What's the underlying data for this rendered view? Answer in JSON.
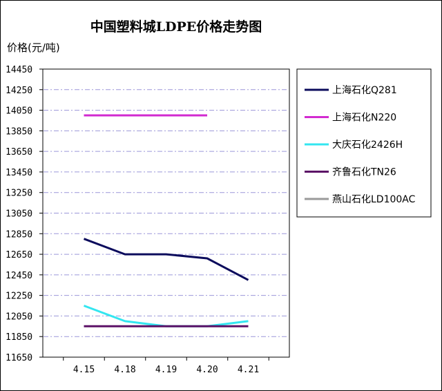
{
  "chart_data": {
    "type": "line",
    "title": "中国塑料城LDPE价格走势图",
    "ylabel": "价格(元/吨)",
    "xlabel": "",
    "categories": [
      "4.15",
      "4.18",
      "4.19",
      "4.20",
      "4.21"
    ],
    "y_ticks": [
      "14450",
      "14250",
      "14050",
      "13850",
      "13650",
      "13450",
      "13250",
      "13050",
      "12850",
      "12650",
      "12450",
      "12250",
      "12050",
      "11850",
      "11650"
    ],
    "ylim": [
      11650,
      14450
    ],
    "grid": "horizontal dash-dot lines",
    "legend_position": "right",
    "series": [
      {
        "name": "上海石化Q281",
        "color": "#0b0b5c",
        "values": [
          12800,
          12650,
          12650,
          12610,
          12400
        ]
      },
      {
        "name": "上海石化N220",
        "color": "#d22ad0",
        "values": [
          14000,
          14000,
          14000,
          14000,
          null
        ]
      },
      {
        "name": "大庆石化2426H",
        "color": "#33e6f0",
        "values": [
          12150,
          12000,
          11950,
          11950,
          12000
        ]
      },
      {
        "name": "齐鲁石化TN26",
        "color": "#5c1167",
        "values": [
          11950,
          11950,
          11950,
          11950,
          11950
        ]
      },
      {
        "name": "燕山石化LD100AC",
        "color": "#9a9a9a",
        "values": [
          null,
          null,
          null,
          null,
          null
        ]
      }
    ]
  }
}
